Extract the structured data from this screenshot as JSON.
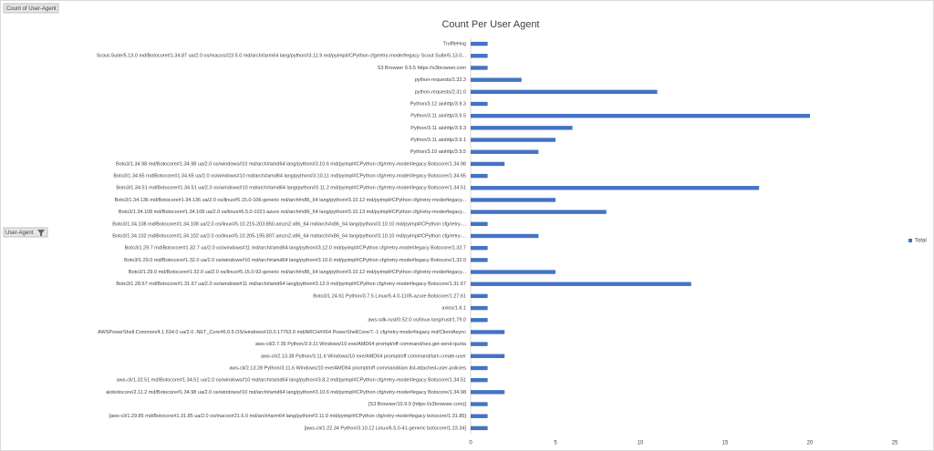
{
  "field_buttons": {
    "value_field": "Count of User-Agent",
    "axis_field": "User-Agent"
  },
  "chart_data": {
    "type": "bar",
    "orientation": "horizontal",
    "title": "Count Per User Agent",
    "categories": [
      "TruffleHog",
      "Scout-Suite/5.13.0 md/Botocore#1.34.87 ua/2.0 os/macos#23.5.0 md/arch#arm64 lang/python#3.11.9 md/pyimpl#CPython cfg/retry-mode#legacy Scout Suite/5.13.0...",
      "S3 Browser 9.5.5 https://s3browser.com",
      "python-requests/2.32.3",
      "python-requests/2.31.0",
      "Python/3.12 aiohttp/3.9.3",
      "Python/3.11 aiohttp/3.9.5",
      "Python/3.11 aiohttp/3.9.3",
      "Python/3.11 aiohttp/3.9.1",
      "Python/3.10 aiohttp/3.9.5",
      "Boto3/1.34.98 md/Botocore#1.34.98 ua/2.0 os/windows#10 md/arch#amd64 lang/python#3.10.6 md/pyimpl#CPython cfg/retry-mode#legacy Botocore/1.34.98",
      "Boto3/1.34.65 md/Botocore#1.34.65 ua/2.0 os/windows#10 md/arch#amd64 lang/python#3.10.11 md/pyimpl#CPython cfg/retry-mode#legacy Botocore/1.34.65",
      "Boto3/1.34.51 md/Botocore#1.34.51 ua/2.0 os/windows#10 md/arch#amd64 lang/python#3.11.2 md/pyimpl#CPython cfg/retry-mode#legacy Botocore/1.34.51",
      "Boto3/1.34.136 md/Botocore#1.34.136 ua/2.0 os/linux#5.15.0-106-generic md/arch#x86_64 lang/python#3.10.12 md/pyimpl#CPython cfg/retry-mode#legacy...",
      "Boto3/1.34.108 md/Botocore#1.34.108 ua/2.0 os/linux#6.5.0-1021-azure md/arch#x86_64 lang/python#3.10.13 md/pyimpl#CPython cfg/retry-mode#legacy...",
      "Boto3/1.34.108 md/Botocore#1.34.108 ua/2.0 os/linux#5.10.215-203.850.amzn2.x86_64 md/arch#x86_64 lang/python#3.10.10 md/pyimpl#CPython cfg/retry-...",
      "Boto3/1.34.102 md/Botocore#1.34.102 ua/2.0 os/linux#5.10.205-195.807.amzn2.x86_64 md/arch#x86_64 lang/python#3.10.10 md/pyimpl#CPython cfg/retry-...",
      "Boto3/1.29.7 md/Botocore#1.32.7 ua/2.0 os/windows#11 md/arch#amd64 lang/python#3.12.0 md/pyimpl#CPython cfg/retry-mode#legacy Botocore/1.32.7",
      "Boto3/1.29.0 md/Botocore#1.32.0 ua/2.0 os/windows#10 md/arch#amd64 lang/python#3.10.6 md/pyimpl#CPython cfg/retry-mode#legacy Botocore/1.32.0",
      "Boto3/1.29.0 md/Botocore#1.32.0 ua/2.0 os/linux#5.15.0-92-generic md/arch#x86_64 lang/python#3.10.12 md/pyimpl#CPython cfg/retry-mode#legacy...",
      "Boto3/1.28.67 md/Botocore#1.31.67 ua/2.0 os/windows#11 md/arch#amd64 lang/python#3.12.0 md/pyimpl#CPython cfg/retry-mode#legacy Botocore/1.31.67",
      "Boto3/1.24.61 Python/3.7.5 Linux/5.4.0-1105-azure Botocore/1.27.61",
      "axios/1.6.1",
      "aws-sdk-rust/0.52.0 os/linux lang/rust/1.79.0",
      "AWSPowerShell.Common/4.1.534.0 ua/2.0 .NET_Core#6.0.5 OS/windows#10.0.17763.0 md/ARCH#X64 PowerShellCore/7.-1 cfg/retry-mode#legacy md/ClientAsync",
      "aws-cli/2.7.35 Python/3.9.11 Windows/10 exe/AMD64 prompt/off command/ses.get-send-quota",
      "aws-cli/2.13.38 Python/3.11.6 Windows/10 exe/AMD64 prompt/off command/iam.create-user",
      "aws-cli/2.13.28 Python/3.11.6 Windows/10 exe/AMD64 prompt/off command/iam.list-attached-user-policies",
      "aws-cli/1.32.51 md/Botocore#1.34.51 ua/2.0 os/windows#10 md/arch#amd64 lang/python#3.8.2 md/pyimpl#CPython cfg/retry-mode#legacy Botocore/1.34.51",
      "aiobotocore/2.11.2 md/Botocore#1.34.98 ua/2.0 os/windows#10 md/arch#amd64 lang/python#3.10.6 md/pyimpl#CPython cfg/retry-mode#legacy Botocore/1.34.98",
      "[S3 Browser/10.9.9 (https://s3browser.com)]",
      "[aws-cli/1.29.85 md/Botocore#1.31.85 ua/2.0 os/macos#21.6.0 md/arch#arm64 lang/python#3.11.9 md/pyimpl#CPython cfg/retry-mode#legacy botocore/1.31.85]",
      "[aws-cli/1.22.34 Python/3.10.12 Linux/6.5.0-41-generic botocore/1.23.34]"
    ],
    "series": [
      {
        "name": "Total",
        "color": "#4472c4",
        "values": [
          1,
          1,
          1,
          3,
          11,
          1,
          20,
          6,
          5,
          4,
          2,
          1,
          17,
          5,
          8,
          1,
          4,
          1,
          1,
          5,
          13,
          1,
          1,
          1,
          2,
          1,
          2,
          1,
          1,
          2,
          1,
          1,
          1
        ]
      }
    ],
    "xlim": [
      0,
      25
    ],
    "xticks": [
      0,
      5,
      10,
      15,
      20,
      25
    ],
    "grid": false,
    "legend": "right"
  }
}
